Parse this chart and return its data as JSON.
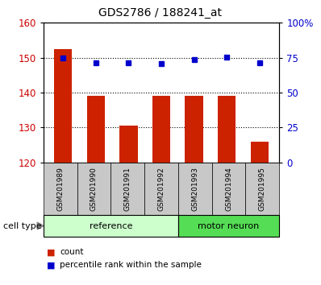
{
  "title": "GDS2786 / 188241_at",
  "samples": [
    "GSM201989",
    "GSM201990",
    "GSM201991",
    "GSM201992",
    "GSM201993",
    "GSM201994",
    "GSM201995"
  ],
  "counts": [
    152.5,
    139.0,
    130.5,
    139.0,
    139.0,
    139.0,
    126.0
  ],
  "percentiles": [
    75.0,
    71.5,
    71.5,
    71.0,
    73.5,
    75.5,
    71.5
  ],
  "ylim_left": [
    120,
    160
  ],
  "ylim_right": [
    0,
    100
  ],
  "yticks_left": [
    120,
    130,
    140,
    150,
    160
  ],
  "yticks_right": [
    0,
    25,
    50,
    75,
    100
  ],
  "ytick_labels_right": [
    "0",
    "25",
    "50",
    "75",
    "100%"
  ],
  "bar_color": "#cc2200",
  "dot_color": "#0000cc",
  "groups": [
    {
      "label": "reference",
      "indices": [
        0,
        1,
        2,
        3
      ],
      "color": "#ccffcc"
    },
    {
      "label": "motor neuron",
      "indices": [
        4,
        5,
        6
      ],
      "color": "#55dd55"
    }
  ],
  "cell_type_label": "cell type",
  "legend_count_label": "count",
  "legend_percentile_label": "percentile rank within the sample",
  "bar_color_left": "#cc0000",
  "tick_color_left": "#cc0000",
  "tick_color_right": "#0000cc",
  "sample_box_color": "#c8c8c8",
  "bar_width": 0.55,
  "figsize": [
    3.98,
    3.54
  ],
  "dpi": 100
}
